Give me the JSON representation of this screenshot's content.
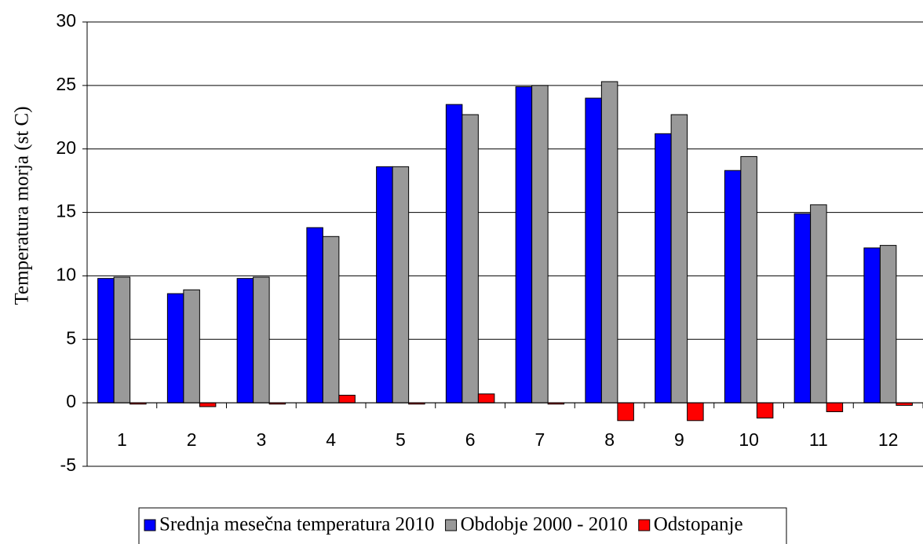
{
  "chart_data": {
    "type": "bar",
    "y_label": "Temperatura morja (st C)",
    "categories": [
      "1",
      "2",
      "3",
      "4",
      "5",
      "6",
      "7",
      "8",
      "9",
      "10",
      "11",
      "12"
    ],
    "series": [
      {
        "name": "Srednja mesečna temperatura 2010",
        "color": "#0000ff",
        "values": [
          9.8,
          8.6,
          9.8,
          13.8,
          18.6,
          23.5,
          24.9,
          24.0,
          21.2,
          18.3,
          14.9,
          12.2
        ]
      },
      {
        "name": "Obdobje 2000 - 2010",
        "color": "#999999",
        "values": [
          9.9,
          8.9,
          9.9,
          13.1,
          18.6,
          22.7,
          25.0,
          25.3,
          22.7,
          19.4,
          15.6,
          12.4
        ]
      },
      {
        "name": "Odstopanje",
        "color": "#ff0000",
        "values": [
          -0.1,
          -0.3,
          -0.1,
          0.6,
          -0.1,
          0.7,
          -0.1,
          -1.4,
          -1.4,
          -1.2,
          -0.7,
          -0.2
        ]
      }
    ],
    "ylim": [
      -5,
      30
    ],
    "yticks": [
      -5,
      0,
      5,
      10,
      15,
      20,
      25,
      30
    ],
    "grid": true,
    "legend": "bottom"
  }
}
